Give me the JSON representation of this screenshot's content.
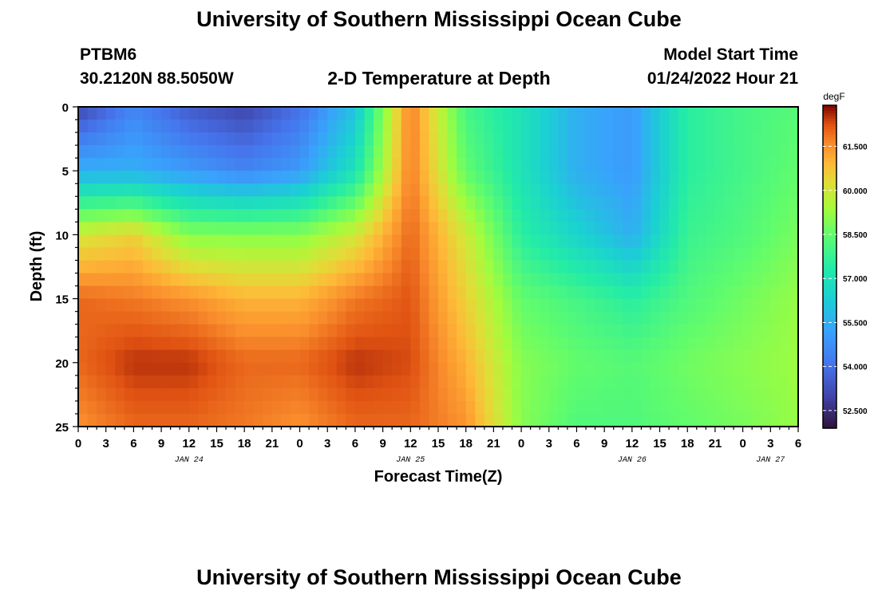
{
  "title": "University of Southern Mississippi Ocean Cube",
  "station": "PTBM6",
  "location": "30.2120N  88.5050W",
  "plot_title": "2-D Temperature at Depth",
  "model_start_label": "Model Start Time",
  "model_start_value": "01/24/2022 Hour 21",
  "bottom_title": "University of Southern Mississippi Ocean Cube",
  "chart_data": {
    "type": "heatmap",
    "title": "2-D Temperature at Depth",
    "xlabel": "Forecast Time(Z)",
    "ylabel": "Depth (ft)",
    "x_tick_labels": [
      "0",
      "3",
      "6",
      "9",
      "12",
      "15",
      "18",
      "21",
      "0",
      "3",
      "6",
      "9",
      "12",
      "15",
      "18",
      "21",
      "0",
      "3",
      "6",
      "9",
      "12",
      "15",
      "18",
      "21",
      "0",
      "3",
      "6"
    ],
    "x_range_hours": [
      0,
      78
    ],
    "date_labels": [
      {
        "label": "JAN 24",
        "hour": 12
      },
      {
        "label": "JAN 25",
        "hour": 36
      },
      {
        "label": "JAN 26",
        "hour": 60
      },
      {
        "label": "JAN 27",
        "hour": 75
      }
    ],
    "y_ticks": [
      0,
      5,
      10,
      15,
      20,
      25
    ],
    "ylim": [
      0,
      25
    ],
    "colorbar": {
      "unit": "degF",
      "ticks": [
        "52.500",
        "54.000",
        "55.500",
        "57.000",
        "58.500",
        "60.000",
        "61.500"
      ],
      "range": [
        51.9,
        62.9
      ]
    },
    "approx_field_degF": {
      "note": "approximate temperatures read from color scale",
      "hours": [
        0,
        6,
        12,
        18,
        24,
        30,
        36,
        42,
        48,
        54,
        60,
        66,
        72,
        78
      ],
      "depths_ft": [
        0,
        5,
        10,
        15,
        20,
        25
      ],
      "values": [
        [
          53.0,
          54.5,
          53.5,
          53.0,
          54.0,
          56.0,
          61.8,
          58.0,
          57.0,
          55.5,
          55.0,
          57.5,
          58.0,
          58.3
        ],
        [
          55.5,
          55.5,
          55.0,
          54.5,
          55.0,
          57.0,
          61.8,
          58.5,
          57.0,
          55.5,
          55.0,
          57.5,
          58.0,
          58.5
        ],
        [
          60.0,
          60.5,
          59.0,
          59.0,
          59.0,
          60.0,
          62.0,
          60.0,
          57.5,
          56.5,
          55.5,
          57.8,
          58.2,
          58.8
        ],
        [
          62.0,
          61.8,
          61.5,
          61.0,
          61.0,
          61.8,
          62.2,
          60.5,
          58.5,
          58.0,
          57.5,
          58.2,
          58.7,
          59.2
        ],
        [
          62.0,
          62.5,
          62.5,
          62.0,
          62.0,
          62.5,
          62.3,
          61.0,
          59.0,
          58.5,
          58.3,
          58.7,
          59.0,
          59.3
        ],
        [
          61.5,
          62.0,
          62.0,
          61.8,
          61.5,
          62.0,
          62.0,
          61.5,
          59.0,
          58.2,
          58.2,
          58.5,
          58.8,
          59.2
        ]
      ]
    }
  }
}
